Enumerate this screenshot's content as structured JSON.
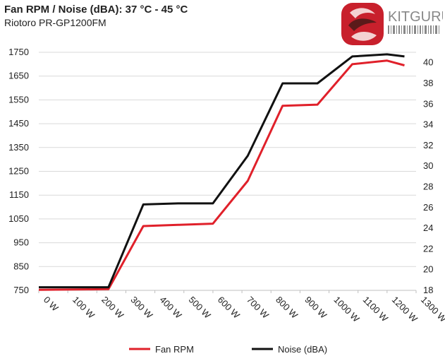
{
  "chart_data": {
    "type": "line",
    "title": "Fan RPM / Noise (dBA): 37 °C - 45 °C",
    "subtitle": "Riotoro PR-GP1200FM",
    "categories": [
      "0 W",
      "100 W",
      "200 W",
      "300 W",
      "400 W",
      "500 W",
      "600 W",
      "700 W",
      "800 W",
      "900 W",
      "1000 W",
      "1100 W",
      "1200 W",
      "1300 W"
    ],
    "x": [
      0,
      240,
      360,
      480,
      600,
      720,
      840,
      960,
      1080,
      1200,
      1260
    ],
    "left_axis": {
      "ylim": [
        750,
        1750
      ],
      "ticks": [
        750,
        850,
        950,
        1050,
        1150,
        1250,
        1350,
        1450,
        1550,
        1650,
        1750
      ]
    },
    "right_axis": {
      "ylim": [
        18,
        41
      ],
      "ticks": [
        18,
        20,
        22,
        24,
        26,
        28,
        30,
        32,
        34,
        36,
        38,
        40
      ]
    },
    "series": [
      {
        "name": "Fan RPM",
        "axis": "left",
        "color": "#e0202a",
        "values": [
          752,
          755,
          1020,
          1025,
          1030,
          1210,
          1525,
          1530,
          1700,
          1715,
          1695
        ]
      },
      {
        "name": "Noise (dBA)",
        "axis": "right",
        "color": "#111111",
        "values": [
          18.3,
          18.3,
          26.3,
          26.4,
          26.4,
          31.0,
          38.0,
          38.0,
          40.6,
          40.8,
          40.6
        ]
      }
    ],
    "grid": "horizontal",
    "legend": "bottom"
  },
  "logo": {
    "text": "KITGURU",
    "colors": {
      "red": "#c8202c",
      "dark": "#5a1a1a",
      "gray": "#9a9a9a"
    }
  }
}
